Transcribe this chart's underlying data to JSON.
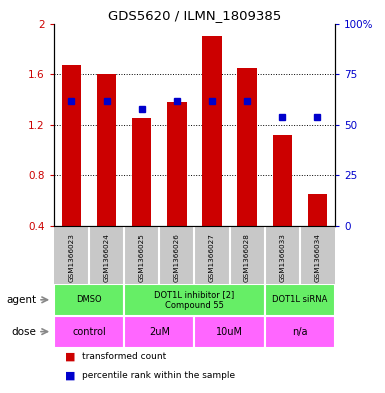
{
  "title": "GDS5620 / ILMN_1809385",
  "samples": [
    "GSM1366023",
    "GSM1366024",
    "GSM1366025",
    "GSM1366026",
    "GSM1366027",
    "GSM1366028",
    "GSM1366033",
    "GSM1366034"
  ],
  "red_values": [
    1.67,
    1.6,
    1.25,
    1.38,
    1.9,
    1.65,
    1.12,
    0.65
  ],
  "blue_percentiles": [
    62,
    62,
    58,
    62,
    62,
    62,
    54,
    54
  ],
  "ylim_left": [
    0.4,
    2.0
  ],
  "ylim_right": [
    0,
    100
  ],
  "yticks_left": [
    0.4,
    0.8,
    1.2,
    1.6,
    2.0
  ],
  "ytick_labels_left": [
    "0.4",
    "0.8",
    "1.2",
    "1.6",
    "2"
  ],
  "yticks_right": [
    0,
    25,
    50,
    75,
    100
  ],
  "ytick_labels_right": [
    "0",
    "25",
    "50",
    "75",
    "100%"
  ],
  "agent_groups": [
    {
      "label": "DMSO",
      "start": 0,
      "end": 2
    },
    {
      "label": "DOT1L inhibitor [2]\nCompound 55",
      "start": 2,
      "end": 6
    },
    {
      "label": "DOT1L siRNA",
      "start": 6,
      "end": 8
    }
  ],
  "dose_groups": [
    {
      "label": "control",
      "start": 0,
      "end": 2
    },
    {
      "label": "2uM",
      "start": 2,
      "end": 4
    },
    {
      "label": "10uM",
      "start": 4,
      "end": 6
    },
    {
      "label": "n/a",
      "start": 6,
      "end": 8
    }
  ],
  "red_color": "#CC0000",
  "blue_color": "#0000CC",
  "bar_width": 0.55,
  "blue_marker_size": 5,
  "agent_color": "#66EE66",
  "dose_color": "#FF66FF",
  "sample_bg_color": "#C8C8C8",
  "legend_labels": [
    "transformed count",
    "percentile rank within the sample"
  ]
}
